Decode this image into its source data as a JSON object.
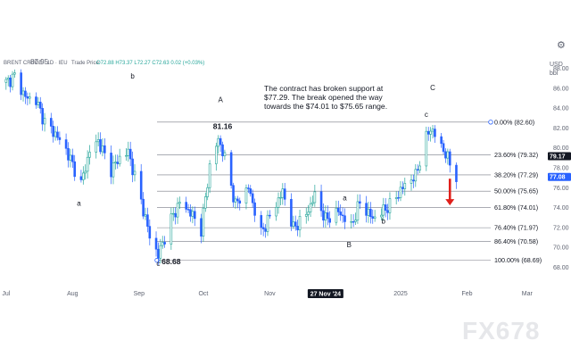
{
  "header": {
    "instrument": "BRENT CRUDE OIL - 1D - IEU",
    "instrument_short": "BRENT CRUDE · 1D · IEU",
    "trade_price_label": "Trade Price",
    "ohlc": "O72.88 H73.37 L72.27 C72.63 0.02 (+0.03%)",
    "overlay_value": "87.95",
    "currency": "USD",
    "units": "bbl"
  },
  "toolbar": {
    "settings_icon": "gear-icon"
  },
  "annotation": {
    "lines": [
      "The contract has broken support at",
      "$77.29. The break opened the way",
      "towards the $74.01 to $75.65 range."
    ]
  },
  "fib_levels": [
    {
      "label": "0.00% (82.60)",
      "price": 82.6
    },
    {
      "label": "23.60% (79.32)",
      "price": 79.32
    },
    {
      "label": "38.20% (77.29)",
      "price": 77.29
    },
    {
      "label": "50.00% (75.65)",
      "price": 75.65
    },
    {
      "label": "61.80% (74.01)",
      "price": 74.01
    },
    {
      "label": "76.40% (71.97)",
      "price": 71.97
    },
    {
      "label": "86.40% (70.58)",
      "price": 70.58
    },
    {
      "label": "100.00% (68.69)",
      "price": 68.69
    }
  ],
  "price_tags": [
    {
      "label": "79.17",
      "price": 79.17,
      "color": "#131722"
    },
    {
      "label": "77.08",
      "price": 77.08,
      "color": "#2962ff"
    }
  ],
  "wave_labels": [
    {
      "text": "a",
      "date": "2024-08-04",
      "price": 74.2
    },
    {
      "text": "b",
      "date": "2024-08-29",
      "price": 87.0
    },
    {
      "text": "c",
      "date": "2024-09-10",
      "price": 68.1
    },
    {
      "text": "A",
      "date": "2024-10-09",
      "price": 84.6
    },
    {
      "text": "81.16",
      "date": "2024-10-10",
      "price": 81.9
    },
    {
      "text": "68.68",
      "date": "2024-09-16",
      "price": 68.3
    },
    {
      "text": "a",
      "date": "2024-12-06",
      "price": 74.7
    },
    {
      "text": "B",
      "date": "2024-12-08",
      "price": 70.0
    },
    {
      "text": "b",
      "date": "2024-12-24",
      "price": 72.4
    },
    {
      "text": "c",
      "date": "2025-01-13",
      "price": 83.1
    },
    {
      "text": "C",
      "date": "2025-01-16",
      "price": 85.8
    }
  ],
  "x_axis": {
    "ticks": [
      {
        "label": "Jul",
        "date": "2024-07-01"
      },
      {
        "label": "Aug",
        "date": "2024-08-01"
      },
      {
        "label": "Sep",
        "date": "2024-09-01"
      },
      {
        "label": "Oct",
        "date": "2024-10-01"
      },
      {
        "label": "Nov",
        "date": "2024-11-01"
      },
      {
        "label": "2025",
        "date": "2025-01-01"
      },
      {
        "label": "Feb",
        "date": "2025-02-01"
      },
      {
        "label": "Mar",
        "date": "2025-03-01"
      }
    ],
    "crosshair_label": "27 Nov '24",
    "crosshair_date": "2024-11-27"
  },
  "watermark": "FX678",
  "chart_data": {
    "type": "candlestick",
    "title": "BRENT CRUDE OIL - 1D - IEU",
    "xlabel": "",
    "ylabel": "USD/bbl",
    "ylim": [
      66.5,
      89.5
    ],
    "xlim": [
      "2024-06-29",
      "2025-03-09"
    ],
    "y_ticks": [
      68.0,
      70.0,
      72.0,
      74.0,
      76.0,
      78.0,
      80.0,
      82.0,
      84.0,
      86.0,
      88.0
    ],
    "grid": false,
    "up_color": "#26a69a",
    "down_color": "#2962ff",
    "arrow_color": "#e0201b",
    "arrow": {
      "date": "2025-01-24",
      "from": 76.9,
      "to": 74.3
    },
    "close_series": [
      {
        "date": "2024-07-01",
        "close": 86.6
      },
      {
        "date": "2024-07-05",
        "close": 87.2
      },
      {
        "date": "2024-07-10",
        "close": 85.1
      },
      {
        "date": "2024-07-15",
        "close": 84.8
      },
      {
        "date": "2024-07-19",
        "close": 82.6
      },
      {
        "date": "2024-07-24",
        "close": 81.4
      },
      {
        "date": "2024-07-29",
        "close": 79.8
      },
      {
        "date": "2024-08-05",
        "close": 76.4
      },
      {
        "date": "2024-08-09",
        "close": 79.7
      },
      {
        "date": "2024-08-13",
        "close": 80.7
      },
      {
        "date": "2024-08-19",
        "close": 77.8
      },
      {
        "date": "2024-08-23",
        "close": 79.0
      },
      {
        "date": "2024-08-27",
        "close": 79.6
      },
      {
        "date": "2024-09-03",
        "close": 73.8
      },
      {
        "date": "2024-09-06",
        "close": 71.1
      },
      {
        "date": "2024-09-10",
        "close": 69.2
      },
      {
        "date": "2024-09-16",
        "close": 72.8
      },
      {
        "date": "2024-09-20",
        "close": 74.5
      },
      {
        "date": "2024-09-25",
        "close": 73.5
      },
      {
        "date": "2024-09-30",
        "close": 71.8
      },
      {
        "date": "2024-10-04",
        "close": 78.1
      },
      {
        "date": "2024-10-08",
        "close": 80.9
      },
      {
        "date": "2024-10-11",
        "close": 79.0
      },
      {
        "date": "2024-10-16",
        "close": 74.3
      },
      {
        "date": "2024-10-22",
        "close": 76.0
      },
      {
        "date": "2024-10-28",
        "close": 71.4
      },
      {
        "date": "2024-11-01",
        "close": 73.1
      },
      {
        "date": "2024-11-07",
        "close": 75.6
      },
      {
        "date": "2024-11-12",
        "close": 71.9
      },
      {
        "date": "2024-11-18",
        "close": 73.3
      },
      {
        "date": "2024-11-22",
        "close": 75.2
      },
      {
        "date": "2024-11-27",
        "close": 72.8
      },
      {
        "date": "2024-12-03",
        "close": 73.6
      },
      {
        "date": "2024-12-09",
        "close": 72.1
      },
      {
        "date": "2024-12-13",
        "close": 74.5
      },
      {
        "date": "2024-12-19",
        "close": 72.9
      },
      {
        "date": "2024-12-27",
        "close": 74.2
      },
      {
        "date": "2025-01-03",
        "close": 76.3
      },
      {
        "date": "2025-01-08",
        "close": 77.2
      },
      {
        "date": "2025-01-13",
        "close": 81.0
      },
      {
        "date": "2025-01-15",
        "close": 82.0
      },
      {
        "date": "2025-01-20",
        "close": 80.2
      },
      {
        "date": "2025-01-24",
        "close": 78.5
      },
      {
        "date": "2025-01-27",
        "close": 77.1
      }
    ]
  }
}
